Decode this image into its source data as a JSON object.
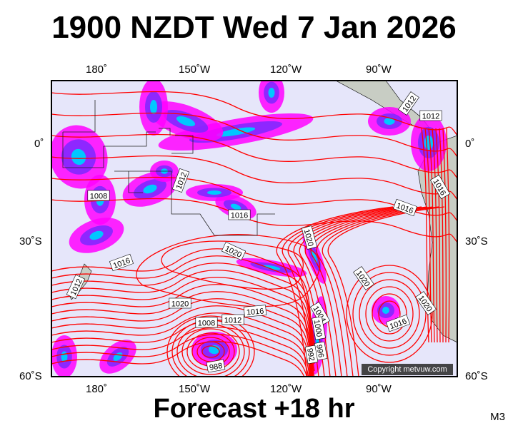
{
  "header": {
    "title": "1900 NZDT Wed 7 Jan 2026"
  },
  "footer": {
    "forecast": "Forecast +18 hr",
    "model": "M3"
  },
  "axes": {
    "top_lon": [
      "180˚",
      "150˚W",
      "120˚W",
      "90˚W"
    ],
    "bottom_lon": [
      "180˚",
      "150˚W",
      "120˚W",
      "90˚W"
    ],
    "left_lat": [
      "0˚",
      "30˚S",
      "60˚S"
    ],
    "right_lat": [
      "0˚",
      "30˚S",
      "60˚S"
    ]
  },
  "map": {
    "copyright": "Copyright metvuw.com",
    "isobar_labels": [
      "1012",
      "1012",
      "1012",
      "1008",
      "1016",
      "1016",
      "1016",
      "1020",
      "1020",
      "1016",
      "1012",
      "1020",
      "1020",
      "1016",
      "1012",
      "1008",
      "1004",
      "1000",
      "996",
      "992",
      "988",
      "1020",
      "1016"
    ],
    "colors": {
      "ocean": "#e6e6fa",
      "isobar": "#ff0000",
      "land": "#c8cdc4",
      "rain_light": "#ff00ff",
      "rain_mid": "#7a28ff",
      "rain_heavy": "#00c8ff"
    }
  }
}
